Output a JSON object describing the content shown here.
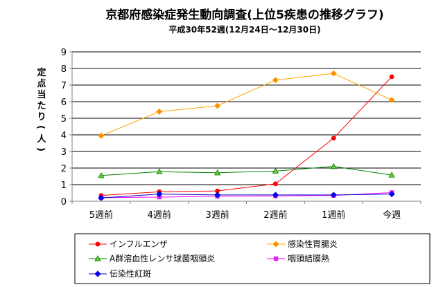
{
  "chart_data": {
    "type": "line",
    "title": "京都府感染症発生動向調査(上位5疾患の推移グラフ)",
    "subtitle": "平成30年52週(12月24日～12月30日)",
    "ylabel": "定点当たり(人)",
    "xlabel": "",
    "categories": [
      "5週前",
      "4週前",
      "3週前",
      "2週前",
      "1週前",
      "今週"
    ],
    "ylim": [
      0,
      9
    ],
    "yticks": [
      "0",
      "1",
      "2",
      "3",
      "4",
      "5",
      "6",
      "7",
      "8",
      "9"
    ],
    "grid": true,
    "legend_position": "bottom",
    "series": [
      {
        "name": "インフルエンザ",
        "color": "#FF0000",
        "marker": "circle",
        "marker_fill": "#FF0000",
        "values": [
          0.35,
          0.57,
          0.62,
          1.05,
          3.8,
          7.5
        ]
      },
      {
        "name": "感染性胃腸炎",
        "color": "#FFA500",
        "marker": "diamond",
        "marker_fill": "#FF8C00",
        "values": [
          3.95,
          5.4,
          5.75,
          7.3,
          7.7,
          6.1
        ]
      },
      {
        "name": "A群溶血性レンサ球菌咽頭炎",
        "color": "#008000",
        "marker": "triangle",
        "marker_fill": "#66CC33",
        "values": [
          1.55,
          1.78,
          1.72,
          1.82,
          2.1,
          1.58
        ]
      },
      {
        "name": "咽頭結膜熱",
        "color": "#FF00FF",
        "marker": "square",
        "marker_fill": "#CC33FF",
        "values": [
          0.22,
          0.25,
          0.3,
          0.32,
          0.35,
          0.52
        ]
      },
      {
        "name": "伝染性紅斑",
        "color": "#0000CC",
        "marker": "diamond",
        "marker_fill": "#0000FF",
        "values": [
          0.2,
          0.43,
          0.38,
          0.38,
          0.38,
          0.43
        ]
      }
    ]
  }
}
